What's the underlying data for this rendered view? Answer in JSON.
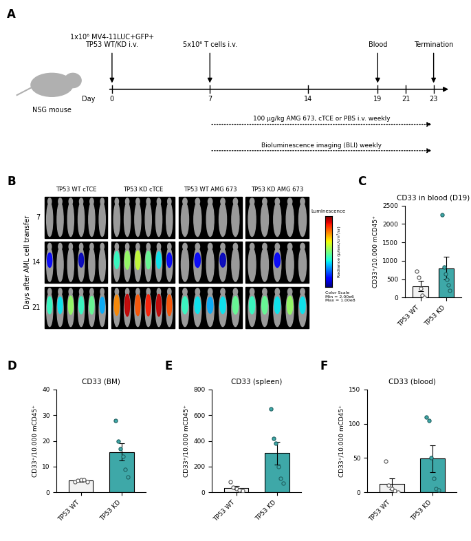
{
  "panel_labels": [
    "A",
    "B",
    "C",
    "D",
    "E",
    "F"
  ],
  "timeline": {
    "subject": "NSG mouse",
    "axis_label": "Day",
    "days": [
      0,
      7,
      14,
      19,
      21,
      23
    ],
    "events": [
      {
        "day": 0,
        "lines": [
          "1x10⁶ MV4-11LUC+GFP+",
          "TP53 WT/KD i.v."
        ]
      },
      {
        "day": 7,
        "lines": [
          "5x10⁶ T cells i.v."
        ]
      },
      {
        "day": 19,
        "lines": [
          "Blood"
        ]
      },
      {
        "day": 23,
        "lines": [
          "Termination"
        ]
      }
    ],
    "periods": [
      {
        "from_day": 7,
        "to_day": 23,
        "label": "100 µg/kg AMG 673, cTCE or PBS i.v. weekly"
      },
      {
        "from_day": 7,
        "to_day": 23,
        "label": "Bioluminescence imaging (BLI) weekly"
      }
    ]
  },
  "bli_images": {
    "y_label": "Days after AML cell transfer",
    "groups": [
      "TP53 WT cTCE",
      "TP53 KD cTCE",
      "TP53 WT AMG 673",
      "TP53 KD AMG 673"
    ],
    "days": [
      7,
      14,
      21
    ],
    "signal_log10": [
      [
        [
          6.0,
          6.0,
          6.0,
          6.0,
          6.0,
          6.0
        ],
        [
          6.5,
          6.0,
          6.0,
          6.4,
          6.0,
          6.0
        ],
        [
          7.0,
          6.9,
          7.2,
          7.0,
          7.1,
          6.8
        ]
      ],
      [
        [
          6.0,
          6.0,
          6.0,
          6.0,
          6.0,
          6.0
        ],
        [
          7.0,
          7.2,
          7.3,
          7.1,
          6.9,
          6.5
        ],
        [
          7.6,
          7.9,
          7.7,
          7.8,
          7.9,
          7.7
        ]
      ],
      [
        [
          6.0,
          6.0,
          6.0,
          6.0,
          6.0
        ],
        [
          6.0,
          6.5,
          6.0,
          6.4,
          6.0
        ],
        [
          7.0,
          6.9,
          6.8,
          6.9,
          7.1
        ]
      ],
      [
        [
          6.0,
          6.0,
          6.0,
          6.0,
          6.0
        ],
        [
          6.0,
          6.0,
          6.5,
          6.0,
          6.0
        ],
        [
          7.0,
          7.1,
          6.9,
          7.2,
          6.9
        ]
      ]
    ],
    "colorbar_title": "Luminescence",
    "colorbar_label": "Radiance (p/sec/cm²/sr)",
    "color_scale_text": [
      "Color Scale",
      "Min = 2.00e6",
      "Max = 1.00e8"
    ],
    "color_range": [
      2000000,
      100000000
    ]
  },
  "chart_data": [
    {
      "type": "bar",
      "panel": "C",
      "title": "CD33 in blood (D19)",
      "y_label": "CD33⁺/10.000 mCD45⁺",
      "categories": [
        "TP53 WT",
        "TP53 KD"
      ],
      "values": [
        314,
        793
      ],
      "errors": [
        140,
        310
      ],
      "points": [
        [
          720,
          550,
          240,
          60,
          0
        ],
        [
          2250,
          820,
          640,
          500,
          350,
          200
        ]
      ],
      "colors": [
        "#f2f2f2",
        "#3ea8a8"
      ],
      "ylim": [
        0,
        2500
      ],
      "yticks": [
        0,
        500,
        1000,
        1500,
        2000,
        2500
      ]
    },
    {
      "type": "bar",
      "panel": "D",
      "title": "CD33 (BM)",
      "y_label": "CD33⁺/10.000 mCD45⁺",
      "categories": [
        "TP53 WT",
        "TP53 KD"
      ],
      "values": [
        4.5,
        15.7
      ],
      "errors": [
        0.3,
        3.3
      ],
      "points": [
        [
          4.0,
          4.5,
          4.8,
          5.0,
          4.2
        ],
        [
          28,
          20,
          17,
          14,
          9,
          6
        ]
      ],
      "colors": [
        "#f2f2f2",
        "#3ea8a8"
      ],
      "ylim": [
        0,
        40
      ],
      "yticks": [
        0,
        10,
        20,
        30,
        40
      ]
    },
    {
      "type": "bar",
      "panel": "E",
      "title": "CD33 (spleen)",
      "y_label": "CD33⁺/10.000 mCD45⁺",
      "categories": [
        "TP53 WT",
        "TP53 KD"
      ],
      "values": [
        36,
        305
      ],
      "errors": [
        12,
        90
      ],
      "points": [
        [
          80,
          40,
          30,
          20,
          10
        ],
        [
          650,
          420,
          380,
          200,
          110,
          70
        ]
      ],
      "colors": [
        "#f2f2f2",
        "#3ea8a8"
      ],
      "ylim": [
        0,
        800
      ],
      "yticks": [
        0,
        200,
        400,
        600,
        800
      ]
    },
    {
      "type": "bar",
      "panel": "F",
      "title": "CD33 (blood)",
      "y_label": "CD33⁺/10.000 mCD45⁺",
      "categories": [
        "TP53 WT",
        "TP53 KD"
      ],
      "values": [
        12,
        49
      ],
      "errors": [
        8,
        20
      ],
      "points": [
        [
          45,
          10,
          5,
          2,
          0
        ],
        [
          110,
          105,
          50,
          20,
          5,
          3
        ]
      ],
      "colors": [
        "#f2f2f2",
        "#3ea8a8"
      ],
      "ylim": [
        0,
        150
      ],
      "yticks": [
        0,
        50,
        100,
        150
      ]
    }
  ]
}
